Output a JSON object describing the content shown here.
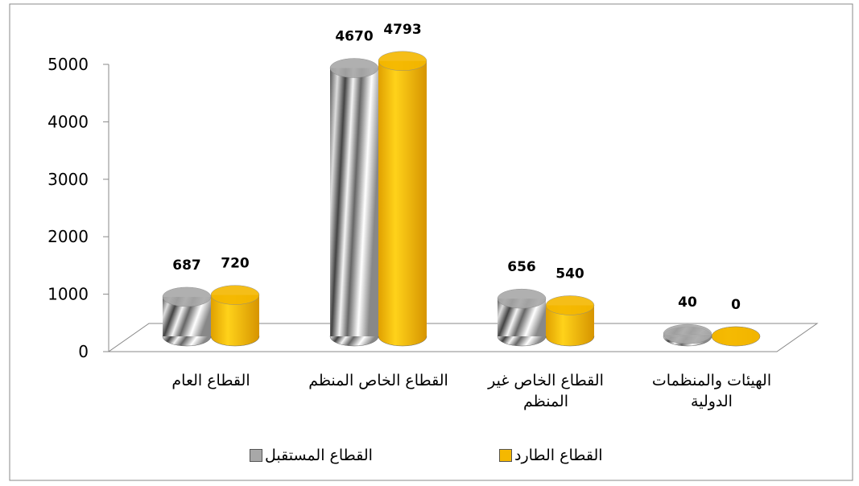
{
  "chart_data": {
    "type": "bar3d",
    "categories": [
      "القطاع العام",
      "القطاع الخاص المنظم",
      "القطاع الخاص غير المنظم",
      "الهيئات والمنظمات الدولية"
    ],
    "series": [
      {
        "name": "القطاع المستقبل",
        "color": "#a8a8a8",
        "values": [
          687,
          4670,
          656,
          40
        ]
      },
      {
        "name": "القطاع الطارد",
        "color": "#f5b800",
        "values": [
          720,
          4793,
          540,
          0
        ]
      }
    ],
    "ylim": [
      0,
      5000
    ],
    "yticks": [
      0,
      1000,
      2000,
      3000,
      4000,
      5000
    ],
    "grid": false
  }
}
